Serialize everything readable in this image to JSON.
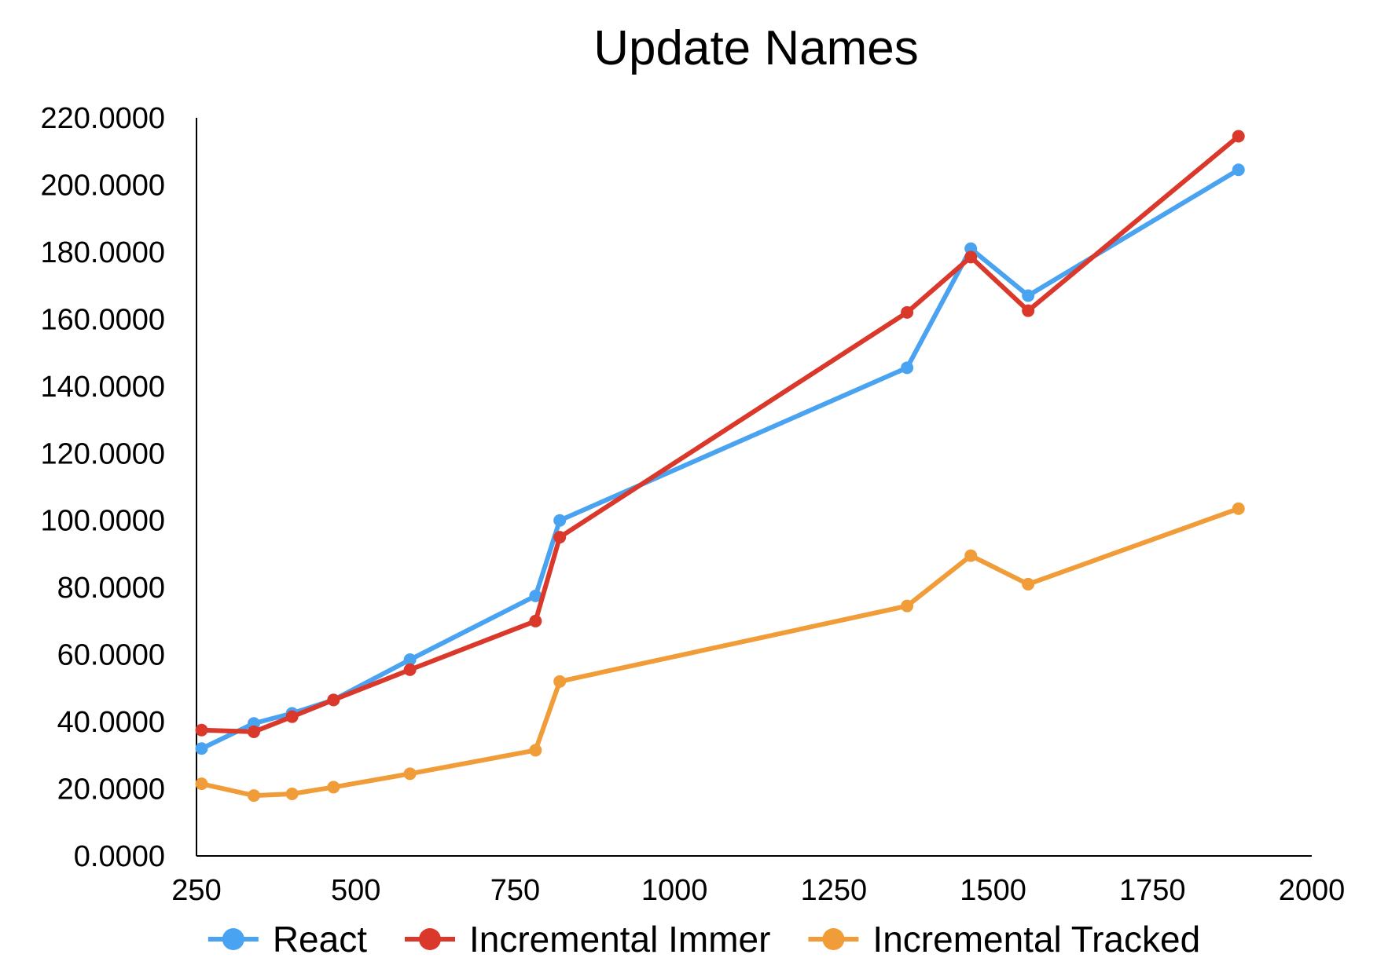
{
  "chart_data": {
    "type": "line",
    "title": "Update Names",
    "xlabel": "",
    "ylabel": "",
    "xlim": [
      250,
      2000
    ],
    "ylim": [
      0,
      220
    ],
    "x_ticks": [
      250,
      500,
      750,
      1000,
      1250,
      1500,
      1750,
      2000
    ],
    "x_tick_labels": [
      "250",
      "500",
      "750",
      "1000",
      "1250",
      "1500",
      "1750",
      "2000"
    ],
    "y_ticks": [
      0,
      20,
      40,
      60,
      80,
      100,
      120,
      140,
      160,
      180,
      200,
      220
    ],
    "y_tick_labels": [
      "0.0000",
      "20.0000",
      "40.0000",
      "60.0000",
      "80.0000",
      "100.0000",
      "120.0000",
      "140.0000",
      "160.0000",
      "180.0000",
      "200.0000",
      "220.0000"
    ],
    "grid": false,
    "legend_position": "bottom",
    "x": [
      258,
      340,
      400,
      465,
      585,
      782,
      820,
      1365,
      1465,
      1555,
      1885
    ],
    "series": [
      {
        "name": "React",
        "color": "#4aa3f0",
        "values": [
          32.0,
          39.5,
          42.5,
          46.5,
          58.5,
          77.5,
          100.0,
          145.5,
          181.0,
          167.0,
          204.5
        ]
      },
      {
        "name": "Incremental Immer",
        "color": "#d9382b",
        "values": [
          37.5,
          37.0,
          41.5,
          46.5,
          55.5,
          70.0,
          95.0,
          162.0,
          178.5,
          162.5,
          214.5
        ]
      },
      {
        "name": "Incremental Tracked",
        "color": "#f09c38",
        "values": [
          21.5,
          18.0,
          18.5,
          20.5,
          24.5,
          31.5,
          52.0,
          74.5,
          89.5,
          81.0,
          103.5
        ]
      }
    ]
  }
}
